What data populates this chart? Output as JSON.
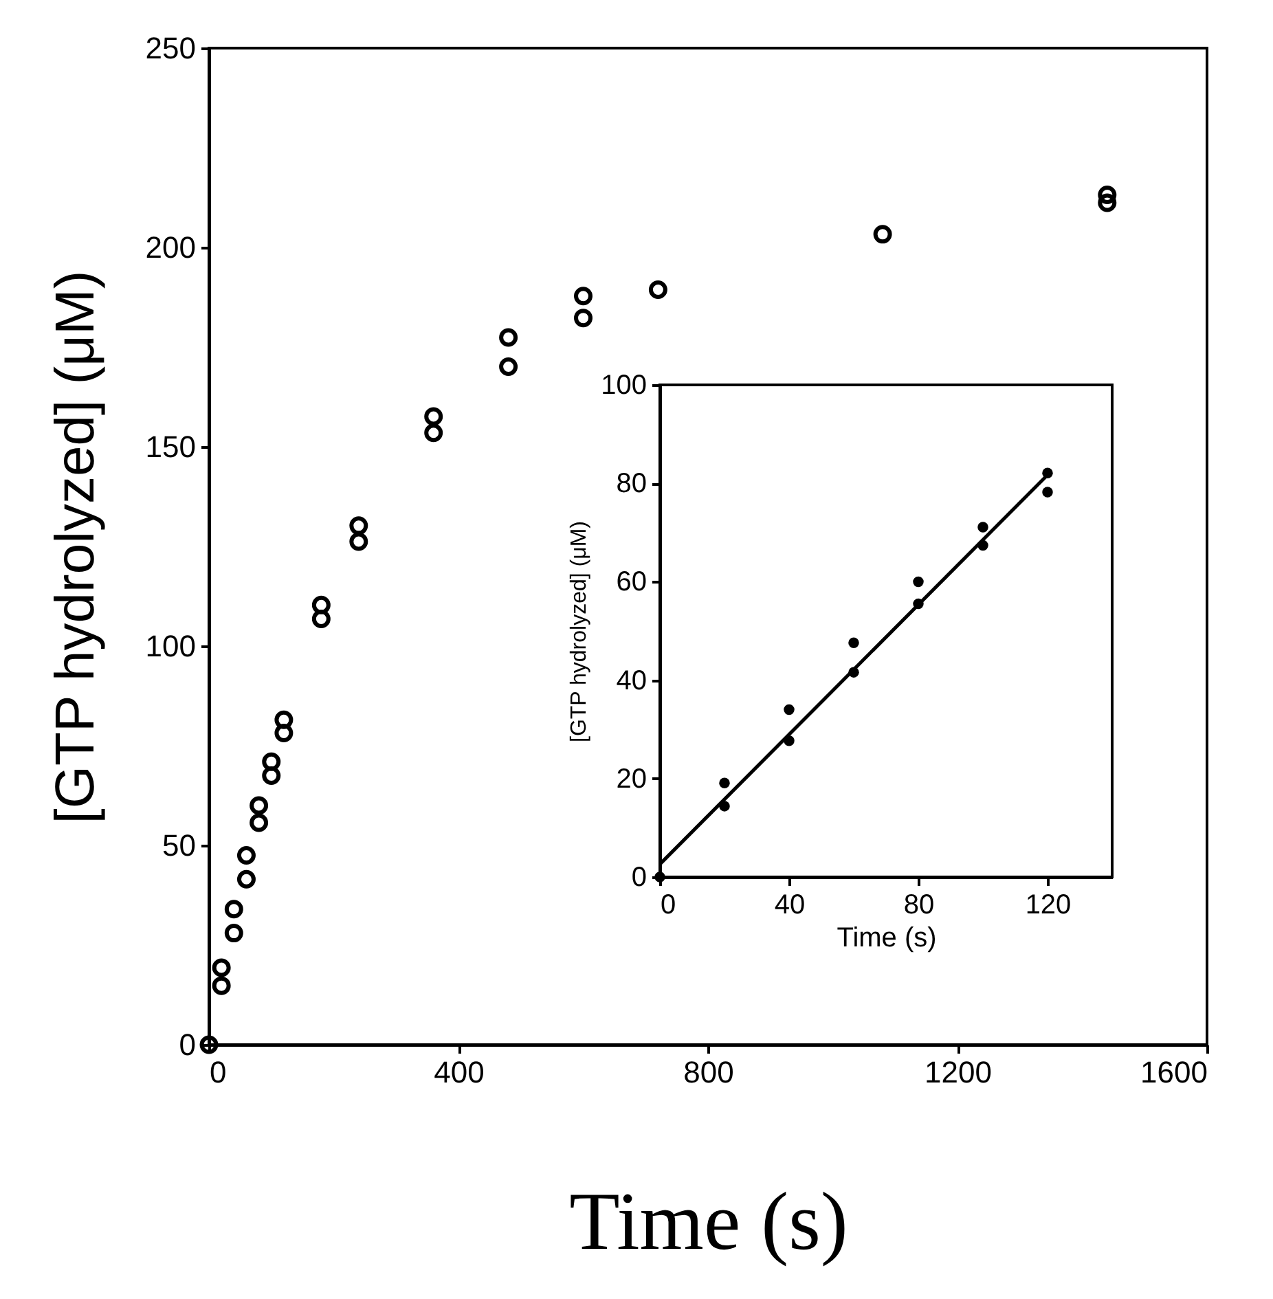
{
  "chart_data": [
    {
      "type": "scatter",
      "xlabel": "Time  (s)",
      "ylabel": "[GTP hydrolyzed]  (μM)",
      "marker": "circle",
      "grid": false,
      "xlim": [
        0,
        1600
      ],
      "xticks": [
        0,
        400,
        800,
        1200,
        1600
      ],
      "ylim": [
        0,
        250
      ],
      "yticks": [
        0,
        50,
        100,
        150,
        200,
        250
      ],
      "series": [
        {
          "color": "#000000",
          "x": [
            0,
            20,
            20,
            40,
            40,
            60,
            60,
            80,
            80,
            100,
            100,
            120,
            120,
            180,
            180,
            240,
            240,
            360,
            360,
            480,
            480,
            600,
            600,
            720,
            1080,
            1440,
            1440
          ],
          "values": [
            0,
            19.3,
            14.8,
            34,
            28,
            47.5,
            41.5,
            60,
            55.7,
            71,
            67.5,
            81.5,
            78.2,
            110.3,
            106.8,
            130.2,
            126.2,
            157.6,
            153.5,
            177.4,
            170.1,
            187.8,
            182.3,
            189.4,
            203.3,
            213.2,
            211.2
          ]
        }
      ]
    },
    {
      "type": "scatter",
      "xlabel": "Time  (s)",
      "ylabel": "[GTP hydrolyzed]  (μM)",
      "marker": "circle",
      "grid": false,
      "xlim": [
        0,
        140
      ],
      "xticks": [
        0,
        40,
        80,
        120
      ],
      "ylim": [
        0,
        100
      ],
      "yticks": [
        0,
        20,
        40,
        60,
        80,
        100
      ],
      "series": [
        {
          "color": "#000000",
          "x": [
            0,
            20,
            20,
            40,
            40,
            60,
            60,
            80,
            80,
            100,
            100,
            120,
            120
          ],
          "values": [
            0,
            19.1,
            14.4,
            34,
            27.7,
            47.6,
            41.6,
            60,
            55.5,
            71.1,
            67.4,
            82.1,
            78.2
          ]
        },
        {
          "type": "line",
          "marker": "none",
          "color": "#000000",
          "x": [
            0,
            120
          ],
          "values": [
            2.6,
            81.7
          ]
        }
      ]
    }
  ]
}
